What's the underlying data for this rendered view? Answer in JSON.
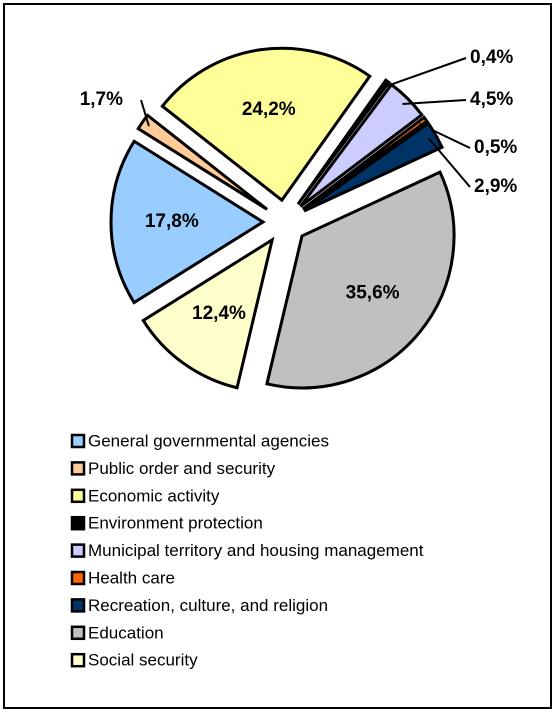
{
  "chart_data": {
    "type": "pie",
    "categories": [
      "General governmental agencies",
      "Public order and security",
      "Economic activity",
      "Environment protection",
      "Municipal territory and housing management",
      "Health care",
      "Recreation, culture, and religion",
      "Education",
      "Social security"
    ],
    "values": [
      17.8,
      1.7,
      24.2,
      0.4,
      4.5,
      0.5,
      2.9,
      35.6,
      12.4
    ],
    "value_labels": [
      "17,8%",
      "1,7%",
      "24,2%",
      "0,4%",
      "4,5%",
      "0,5%",
      "2,9%",
      "35,6%",
      "12,4%"
    ],
    "colors": [
      "#99ccff",
      "#ffcc99",
      "#ffff99",
      "#000000",
      "#ccccff",
      "#ff6600",
      "#003366",
      "#c0c0c0",
      "#ffffcc"
    ]
  }
}
